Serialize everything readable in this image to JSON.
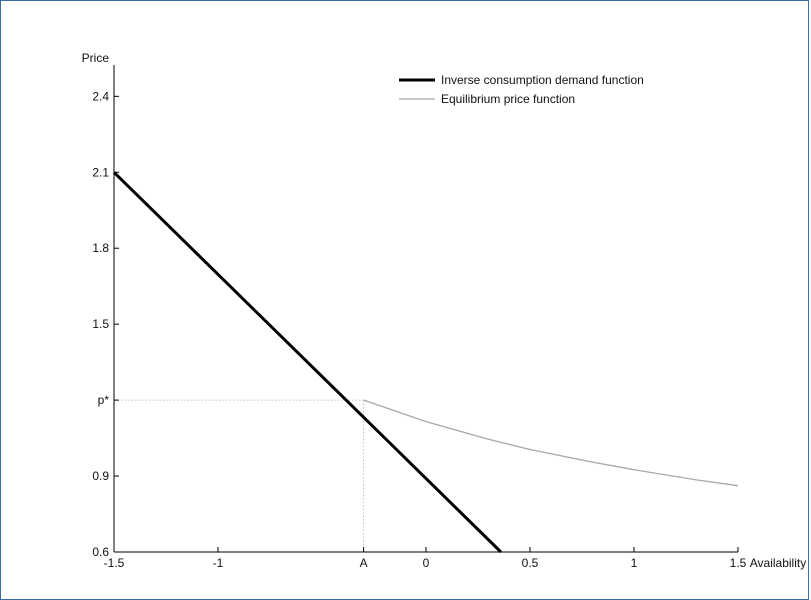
{
  "chart_data": {
    "type": "line",
    "xlabel": "Availability",
    "ylabel": "Price",
    "xlim": [
      -1.5,
      1.5
    ],
    "ylim": [
      0.6,
      2.5
    ],
    "x_ticks": [
      {
        "value": -1.5,
        "label": "-1.5"
      },
      {
        "value": -1,
        "label": "-1"
      },
      {
        "value": -0.3,
        "label": "A"
      },
      {
        "value": 0,
        "label": "0"
      },
      {
        "value": 0.5,
        "label": "0.5"
      },
      {
        "value": 1,
        "label": "1"
      },
      {
        "value": 1.5,
        "label": "1.5"
      }
    ],
    "y_ticks": [
      {
        "value": 0.6,
        "label": "0.6"
      },
      {
        "value": 0.9,
        "label": "0.9"
      },
      {
        "value": 1.2,
        "label": "p*"
      },
      {
        "value": 1.5,
        "label": "1.5"
      },
      {
        "value": 1.8,
        "label": "1.8"
      },
      {
        "value": 2.1,
        "label": "2.1"
      },
      {
        "value": 2.4,
        "label": "2.4"
      }
    ],
    "series": [
      {
        "name": "Inverse consumption demand function",
        "color": "#000000",
        "style": "thick",
        "x": [
          -1.5,
          0.36
        ],
        "y": [
          2.1,
          0.6
        ]
      },
      {
        "name": "Equilibrium price function",
        "color": "#a8a8a8",
        "style": "thin",
        "x": [
          -0.3,
          0.0,
          0.3,
          0.5,
          0.8,
          1.0,
          1.3,
          1.5
        ],
        "y": [
          1.2,
          1.115,
          1.045,
          1.005,
          0.955,
          0.925,
          0.885,
          0.862
        ]
      }
    ],
    "reference_lines": {
      "x": -0.3,
      "y": 1.2,
      "style": "dotted",
      "color": "#bdbdbd"
    },
    "legend": "top-right",
    "grid": false
  }
}
